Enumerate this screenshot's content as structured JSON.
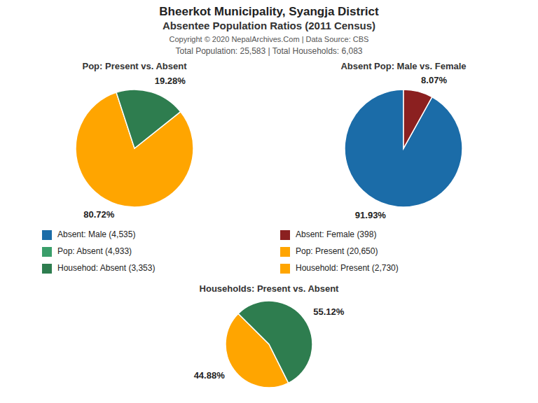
{
  "title": "Bheerkot Municipality, Syangja District",
  "subtitle": "Absentee Population Ratios (2011 Census)",
  "annotations": [
    "Copyright © 2020 NepalArchives.Com | Data Source: CBS",
    "Total Population: 25,583 | Total Households: 6,083"
  ],
  "legend_entries": [
    {
      "name": "Absent: Male (4,535)",
      "color": "#1B6CA8"
    },
    {
      "name": "Absent: Female (398)",
      "color": "#8B2020"
    },
    {
      "name": "Pop: Absent (4,933)",
      "color": "#3A9E6A"
    },
    {
      "name": "Pop: Present (20,650)",
      "color": "#FFA500"
    },
    {
      "name": "Househod: Absent (3,353)",
      "color": "#2E7D4F"
    },
    {
      "name": "Household: Present (2,730)",
      "color": "#FFA500"
    }
  ],
  "chart_data": [
    {
      "type": "pie",
      "title": "Pop: Present vs. Absent",
      "values": [
        80.72,
        19.28
      ],
      "value_labels": [
        "80.72%",
        "19.28%"
      ],
      "colors": [
        "#FFA500",
        "#2E7D4F"
      ],
      "data_labels": true
    },
    {
      "type": "pie",
      "title": "Absent Pop: Male vs. Female",
      "values": [
        91.93,
        8.07
      ],
      "value_labels": [
        "91.93%",
        "8.07%"
      ],
      "colors": [
        "#1B6CA8",
        "#8B2020"
      ],
      "data_labels": true
    },
    {
      "type": "pie",
      "title": "Households: Present vs. Absent",
      "values": [
        44.88,
        55.12
      ],
      "value_labels": [
        "44.88%",
        "55.12%"
      ],
      "colors": [
        "#FFA500",
        "#2E7D4F"
      ],
      "data_labels": true
    }
  ]
}
